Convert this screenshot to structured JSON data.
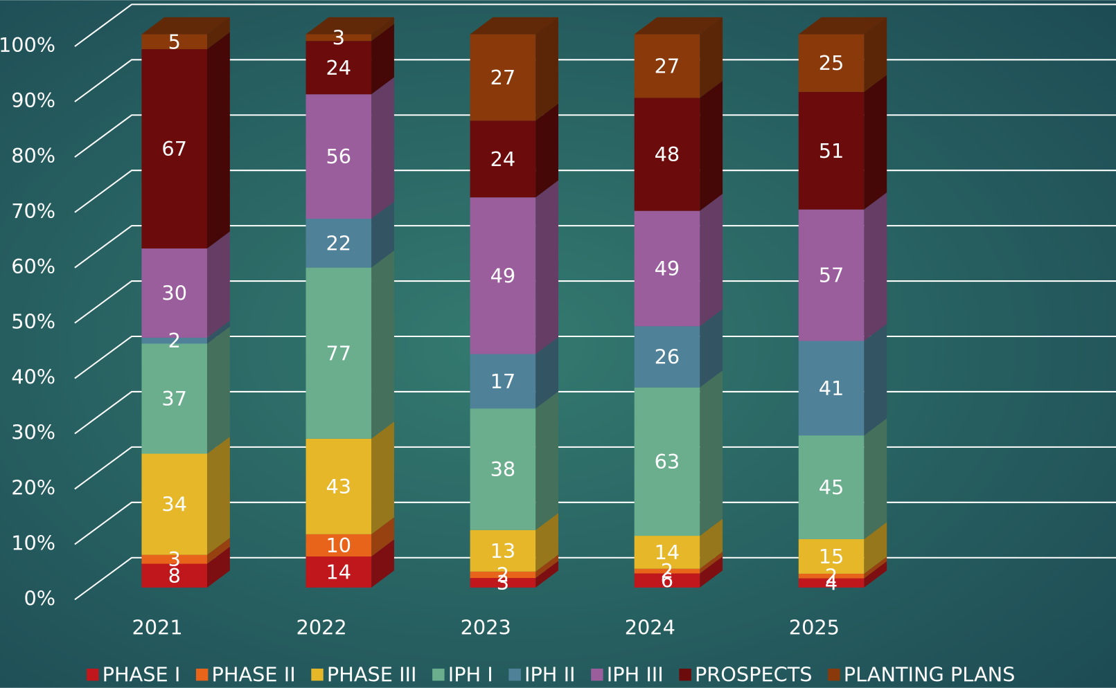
{
  "chart_data": {
    "type": "bar",
    "stacking": "percent",
    "three_d": true,
    "categories": [
      "2021",
      "2022",
      "2023",
      "2024",
      "2025"
    ],
    "series": [
      {
        "name": "PHASE I",
        "color": "#c0171c",
        "values": [
          8,
          14,
          3,
          6,
          4
        ]
      },
      {
        "name": "PHASE II",
        "color": "#e8641a",
        "values": [
          3,
          10,
          2,
          2,
          2
        ]
      },
      {
        "name": "PHASE III",
        "color": "#e6b729",
        "values": [
          34,
          43,
          13,
          14,
          15
        ]
      },
      {
        "name": "IPH I",
        "color": "#6aae8e",
        "values": [
          37,
          77,
          38,
          63,
          45
        ]
      },
      {
        "name": "IPH II",
        "color": "#4f8199",
        "values": [
          2,
          22,
          17,
          26,
          41
        ]
      },
      {
        "name": "IPH III",
        "color": "#9b5e9c",
        "values": [
          30,
          56,
          49,
          49,
          57
        ]
      },
      {
        "name": "PROSPECTS",
        "color": "#6b0b0b",
        "values": [
          67,
          24,
          24,
          48,
          51
        ]
      },
      {
        "name": "PLANTING PLANS",
        "color": "#8a3a0a",
        "values": [
          5,
          3,
          27,
          27,
          25
        ]
      }
    ],
    "ylim": [
      0,
      100
    ],
    "yticks": [
      {
        "value": 0,
        "label": "0%"
      },
      {
        "value": 10,
        "label": "10%"
      },
      {
        "value": 20,
        "label": "20%"
      },
      {
        "value": 30,
        "label": "30%"
      },
      {
        "value": 40,
        "label": "40%"
      },
      {
        "value": 50,
        "label": "50%"
      },
      {
        "value": 60,
        "label": "60%"
      },
      {
        "value": 70,
        "label": "70%"
      },
      {
        "value": 80,
        "label": "80%"
      },
      {
        "value": 90,
        "label": "90%"
      },
      {
        "value": 100,
        "label": "100%"
      }
    ],
    "grid": true,
    "legend": "bottom"
  }
}
